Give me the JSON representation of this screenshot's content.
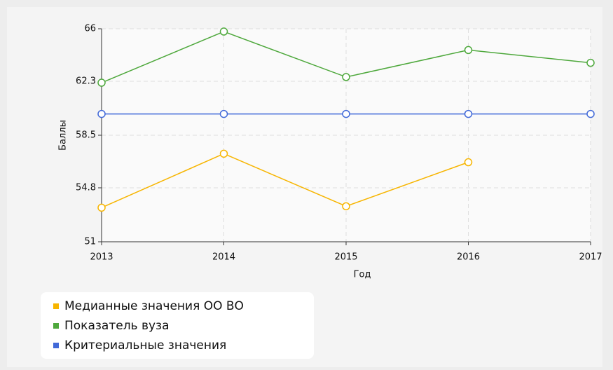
{
  "chart_data": {
    "type": "line",
    "categories": [
      "2013",
      "2014",
      "2015",
      "2016",
      "2017"
    ],
    "series": [
      {
        "name": "Медианные значения ОО ВО",
        "color": "#f7b500",
        "values": [
          53.4,
          57.2,
          53.5,
          56.6,
          null
        ]
      },
      {
        "name": "Показатель вуза",
        "color": "#4ea83c",
        "values": [
          62.2,
          65.8,
          62.6,
          64.5,
          63.6
        ]
      },
      {
        "name": "Критериальные значения",
        "color": "#4169d8",
        "values": [
          60.0,
          60.0,
          60.0,
          60.0,
          60.0
        ]
      }
    ],
    "xlabel": "Год",
    "ylabel": "Баллы",
    "ylim": [
      51,
      66
    ],
    "yticks": [
      51,
      54.8,
      58.5,
      62.3,
      66
    ],
    "grid": true,
    "legend": "bottom-left"
  }
}
